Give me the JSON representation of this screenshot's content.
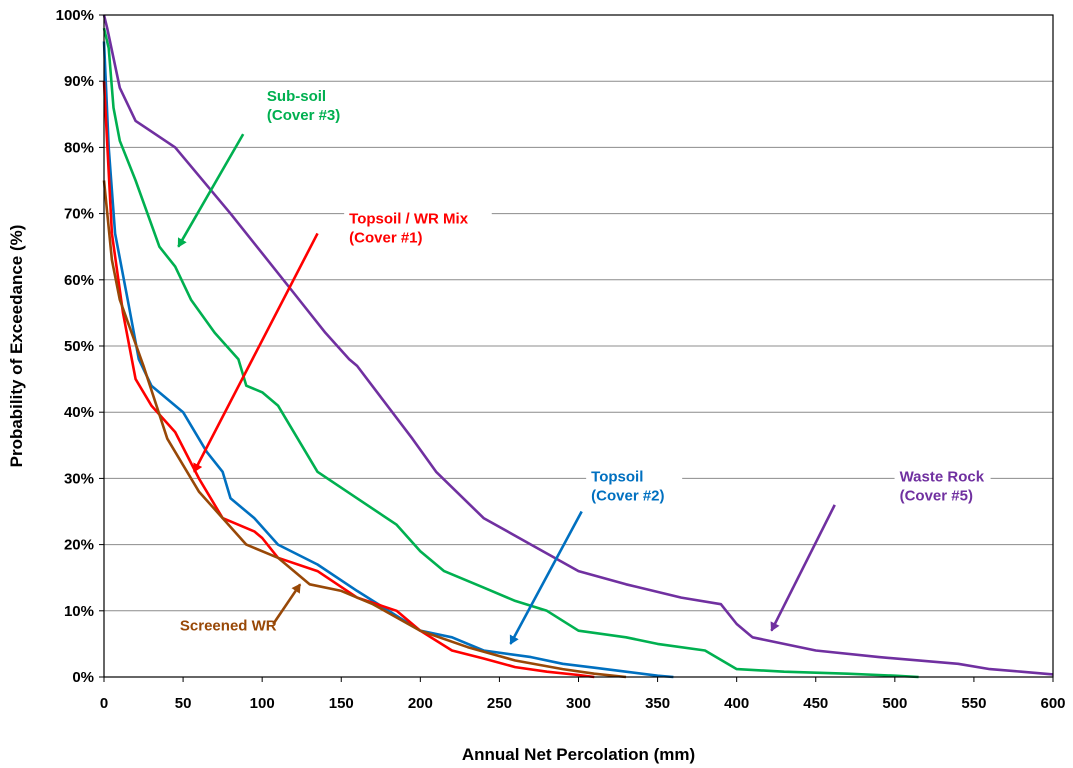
{
  "chart_data": {
    "type": "line",
    "title": "",
    "xlabel": "Annual Net Percolation (mm)",
    "ylabel": "Probability of Exceedance (%)",
    "xlim": [
      0,
      600
    ],
    "ylim": [
      0,
      100
    ],
    "x_ticks": [
      0,
      50,
      100,
      150,
      200,
      250,
      300,
      350,
      400,
      450,
      500,
      550,
      600
    ],
    "x_tick_labels": [
      "0",
      "50",
      "100",
      "150",
      "200",
      "250",
      "300",
      "350",
      "400",
      "450",
      "500",
      "550",
      "600"
    ],
    "y_ticks": [
      0,
      10,
      20,
      30,
      40,
      50,
      60,
      70,
      80,
      90,
      100
    ],
    "y_tick_labels": [
      "0%",
      "10%",
      "20%",
      "30%",
      "40%",
      "50%",
      "60%",
      "70%",
      "80%",
      "90%",
      "100%"
    ],
    "grid": "horizontal",
    "legend": "none",
    "series": [
      {
        "name": "Waste Rock (Cover #5)",
        "color": "#7030A0",
        "points": [
          [
            0,
            100
          ],
          [
            2,
            98
          ],
          [
            10,
            89
          ],
          [
            20,
            84
          ],
          [
            45,
            80
          ],
          [
            80,
            70
          ],
          [
            100,
            64
          ],
          [
            120,
            58
          ],
          [
            140,
            52
          ],
          [
            155,
            48
          ],
          [
            160,
            47
          ],
          [
            195,
            36
          ],
          [
            210,
            31
          ],
          [
            240,
            24
          ],
          [
            270,
            20
          ],
          [
            300,
            16
          ],
          [
            330,
            14
          ],
          [
            365,
            12
          ],
          [
            390,
            11
          ],
          [
            400,
            8
          ],
          [
            410,
            6
          ],
          [
            450,
            4
          ],
          [
            490,
            3
          ],
          [
            540,
            2
          ],
          [
            560,
            1.2
          ],
          [
            580,
            0.8
          ],
          [
            600,
            0.4
          ]
        ]
      },
      {
        "name": "Sub-soil (Cover #3)",
        "color": "#00B050",
        "points": [
          [
            0,
            98
          ],
          [
            3,
            95
          ],
          [
            6,
            86
          ],
          [
            10,
            81
          ],
          [
            20,
            75
          ],
          [
            35,
            65
          ],
          [
            45,
            62
          ],
          [
            55,
            57
          ],
          [
            70,
            52
          ],
          [
            85,
            48
          ],
          [
            90,
            44
          ],
          [
            100,
            43
          ],
          [
            110,
            41
          ],
          [
            120,
            37
          ],
          [
            135,
            31
          ],
          [
            160,
            27
          ],
          [
            185,
            23
          ],
          [
            200,
            19
          ],
          [
            215,
            16
          ],
          [
            240,
            13.5
          ],
          [
            260,
            11.5
          ],
          [
            280,
            10
          ],
          [
            300,
            7
          ],
          [
            330,
            6
          ],
          [
            350,
            5
          ],
          [
            380,
            4
          ],
          [
            400,
            1.2
          ],
          [
            430,
            0.8
          ],
          [
            470,
            0.5
          ],
          [
            500,
            0.2
          ],
          [
            515,
            0
          ]
        ]
      },
      {
        "name": "Topsoil (Cover #2)",
        "color": "#0070C0",
        "points": [
          [
            0,
            96
          ],
          [
            3,
            80
          ],
          [
            7,
            67
          ],
          [
            15,
            57
          ],
          [
            22,
            48
          ],
          [
            30,
            44
          ],
          [
            50,
            40
          ],
          [
            65,
            34
          ],
          [
            75,
            31
          ],
          [
            80,
            27
          ],
          [
            95,
            24
          ],
          [
            110,
            20
          ],
          [
            135,
            17
          ],
          [
            160,
            13
          ],
          [
            180,
            10
          ],
          [
            200,
            7
          ],
          [
            220,
            6
          ],
          [
            240,
            4
          ],
          [
            270,
            3
          ],
          [
            290,
            2
          ],
          [
            310,
            1.4
          ],
          [
            330,
            0.8
          ],
          [
            350,
            0.2
          ],
          [
            360,
            0
          ]
        ]
      },
      {
        "name": "Topsoil / WR Mix (Cover #1)",
        "color": "#FF0000",
        "points": [
          [
            0,
            90
          ],
          [
            5,
            67
          ],
          [
            12,
            55
          ],
          [
            20,
            45
          ],
          [
            30,
            41
          ],
          [
            45,
            37
          ],
          [
            60,
            30
          ],
          [
            75,
            24
          ],
          [
            95,
            22
          ],
          [
            100,
            21
          ],
          [
            110,
            18
          ],
          [
            135,
            16
          ],
          [
            160,
            12
          ],
          [
            185,
            10
          ],
          [
            200,
            7
          ],
          [
            220,
            4
          ],
          [
            240,
            2.8
          ],
          [
            260,
            1.5
          ],
          [
            280,
            0.8
          ],
          [
            300,
            0.3
          ],
          [
            310,
            0
          ]
        ]
      },
      {
        "name": "Screened WR",
        "color": "#984807",
        "points": [
          [
            0,
            75
          ],
          [
            5,
            63
          ],
          [
            10,
            57
          ],
          [
            25,
            47
          ],
          [
            40,
            36
          ],
          [
            60,
            28
          ],
          [
            75,
            24
          ],
          [
            90,
            20
          ],
          [
            110,
            18
          ],
          [
            130,
            14
          ],
          [
            150,
            13
          ],
          [
            170,
            11
          ],
          [
            200,
            7
          ],
          [
            230,
            4.5
          ],
          [
            260,
            2.5
          ],
          [
            290,
            1.2
          ],
          [
            310,
            0.5
          ],
          [
            330,
            0
          ]
        ]
      }
    ],
    "annotations": [
      {
        "lines": [
          "Sub-soil",
          "(Cover #3)"
        ],
        "color": "#00B050",
        "text_at": [
          103,
          87
        ],
        "arrow_from": [
          88,
          82
        ],
        "arrow_to": [
          47,
          65
        ]
      },
      {
        "lines": [
          "Topsoil / WR Mix",
          "(Cover #1)"
        ],
        "color": "#FF0000",
        "text_at": [
          155,
          68.5
        ],
        "arrow_from": [
          135,
          67
        ],
        "arrow_to": [
          57,
          31
        ]
      },
      {
        "lines": [
          "Topsoil",
          "(Cover #2)"
        ],
        "color": "#0070C0",
        "text_at": [
          308,
          29.5
        ],
        "arrow_from": [
          302,
          25
        ],
        "arrow_to": [
          257,
          5
        ]
      },
      {
        "lines": [
          "Waste Rock",
          "(Cover #5)"
        ],
        "color": "#7030A0",
        "text_at": [
          503,
          29.5
        ],
        "arrow_from": [
          462,
          26
        ],
        "arrow_to": [
          422,
          7
        ]
      },
      {
        "lines": [
          "Screened WR"
        ],
        "color": "#984807",
        "text_at": [
          48,
          7
        ],
        "arrow_from": [
          107,
          8
        ],
        "arrow_to": [
          124,
          14
        ]
      }
    ]
  }
}
